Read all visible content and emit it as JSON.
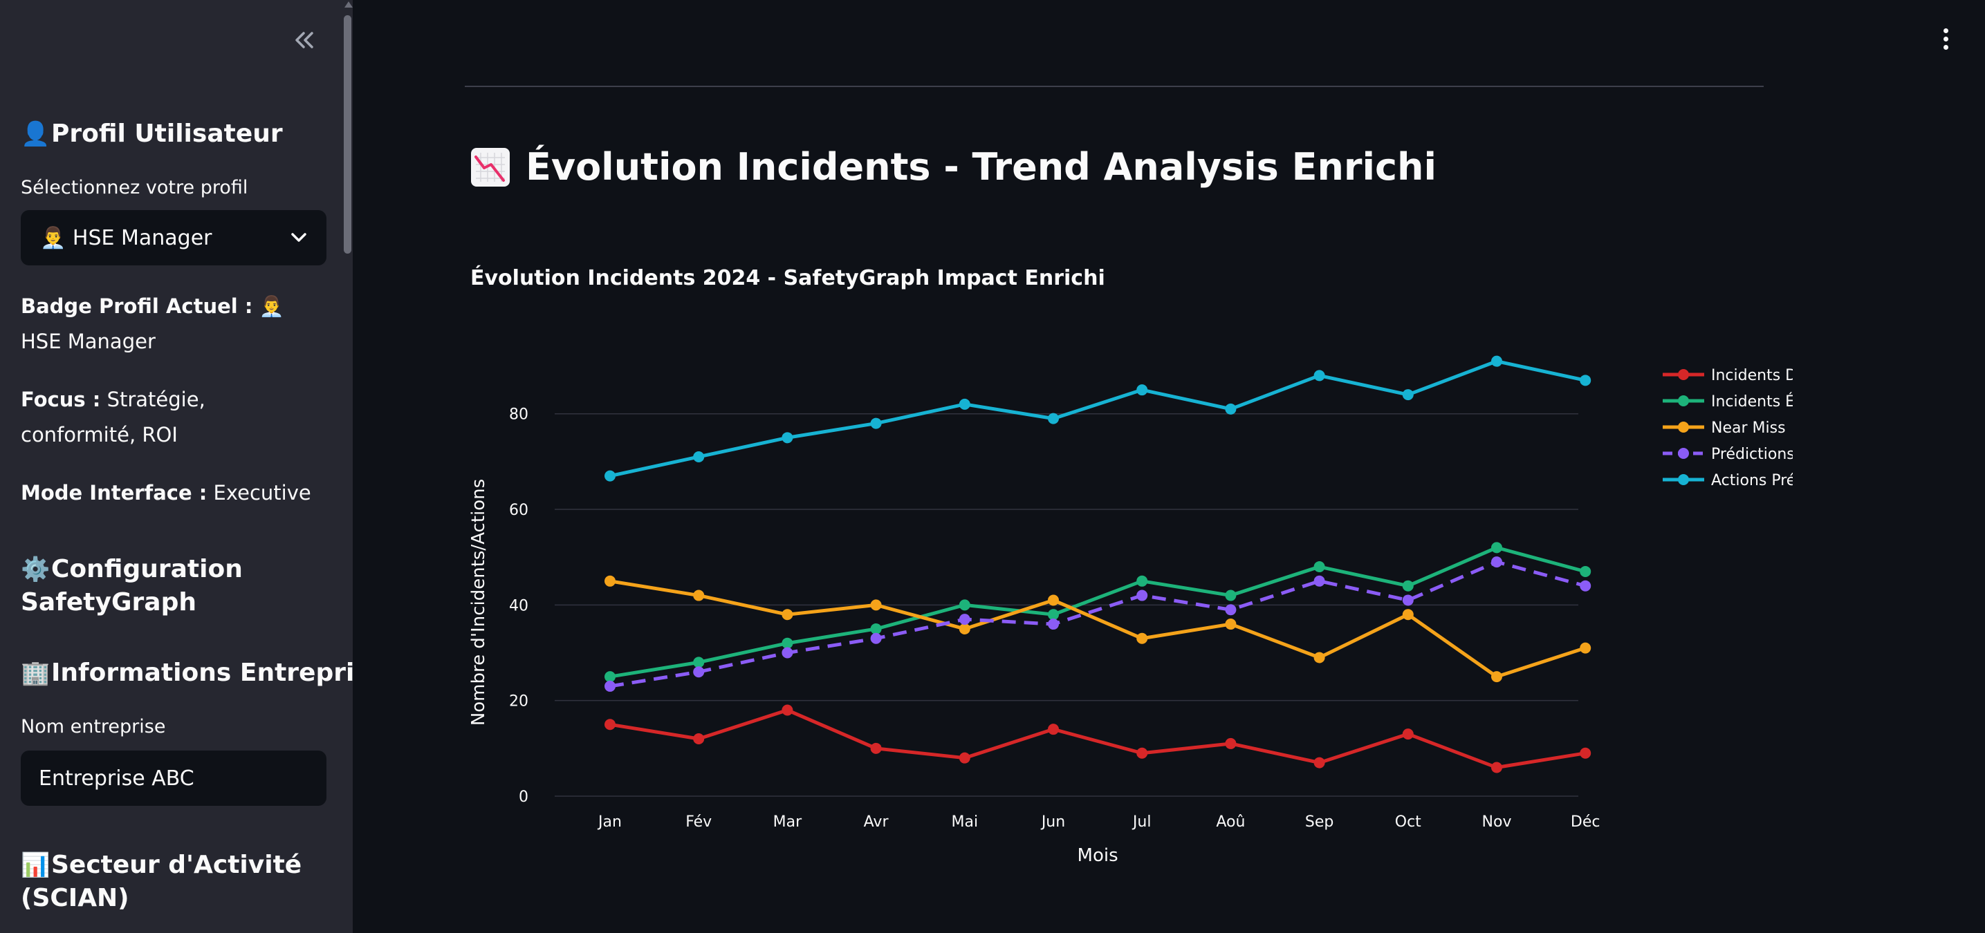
{
  "sidebar": {
    "profile_section": {
      "icon": "👤",
      "title": "Profil Utilisateur"
    },
    "select_label": "Sélectionnez votre profil",
    "select_value": "👨‍💼 HSE Manager",
    "badge": {
      "label": "Badge Profil Actuel :",
      "value": "👨‍💼 HSE Manager"
    },
    "focus": {
      "label": "Focus :",
      "value": "Stratégie, conformité, ROI"
    },
    "mode": {
      "label": "Mode Interface :",
      "value": "Executive"
    },
    "config_section": {
      "icon": "⚙️",
      "title": "Configuration SafetyGraph"
    },
    "company_section": {
      "icon": "🏢",
      "title": "Informations Entreprise"
    },
    "company_label": "Nom entreprise",
    "company_value": "Entreprise ABC",
    "sector_section": {
      "icon": "📊",
      "title": "Secteur d'Activité (SCIAN)"
    }
  },
  "main": {
    "page_title": "Évolution Incidents - Trend Analysis Enrichi",
    "title_icon": "chart-decreasing-icon"
  },
  "chart_data": {
    "type": "line",
    "title": "Évolution Incidents 2024 - SafetyGraph Impact Enrichi",
    "xlabel": "Mois",
    "ylabel": "Nombre d'Incidents/Actions",
    "ylim": [
      0,
      95
    ],
    "yticks": [
      0,
      20,
      40,
      60,
      80
    ],
    "grid": true,
    "legend_position": "right",
    "categories": [
      "Jan",
      "Fév",
      "Mar",
      "Avr",
      "Mai",
      "Jun",
      "Jul",
      "Aoû",
      "Sep",
      "Oct",
      "Nov",
      "Déc"
    ],
    "series": [
      {
        "name": "Incidents Déclarés",
        "color": "#d62728",
        "dash": false,
        "values": [
          15,
          12,
          18,
          10,
          8,
          14,
          9,
          11,
          7,
          13,
          6,
          9
        ]
      },
      {
        "name": "Incidents Évités",
        "color": "#1db37a",
        "dash": false,
        "values": [
          25,
          28,
          32,
          35,
          40,
          38,
          45,
          42,
          48,
          44,
          52,
          47
        ]
      },
      {
        "name": "Near Miss",
        "color": "#f5a31a",
        "dash": false,
        "values": [
          45,
          42,
          38,
          40,
          35,
          41,
          33,
          36,
          29,
          38,
          25,
          31
        ]
      },
      {
        "name": "Prédictions IA",
        "color": "#8b5cf6",
        "dash": true,
        "values": [
          23,
          26,
          30,
          33,
          37,
          36,
          42,
          39,
          45,
          41,
          49,
          44
        ]
      },
      {
        "name": "Actions Préventives",
        "color": "#17b3d3",
        "dash": false,
        "values": [
          67,
          71,
          75,
          78,
          82,
          79,
          85,
          81,
          88,
          84,
          91,
          87
        ]
      }
    ]
  }
}
